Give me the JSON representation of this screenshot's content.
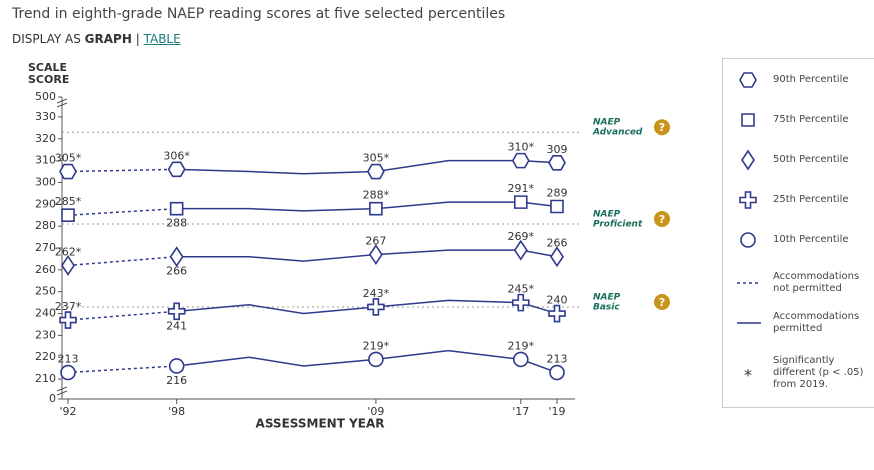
{
  "header": {
    "title": "Trend in eighth-grade NAEP reading scores at five selected percentiles",
    "display_as": "DISPLAY AS",
    "graph": "GRAPH",
    "separator": "|",
    "table": "TABLE"
  },
  "chart_data": {
    "type": "line",
    "y_axis_label": [
      "SCALE",
      "SCORE"
    ],
    "x_axis_label": "ASSESSMENT YEAR",
    "x": [
      1992,
      1998,
      2002,
      2005,
      2009,
      2013,
      2017,
      2019
    ],
    "xlim": [
      1992,
      2019
    ],
    "xticks": [
      {
        "value": 1992,
        "label": "'92"
      },
      {
        "value": 1998,
        "label": "'98"
      },
      {
        "value": 2009,
        "label": "'09"
      },
      {
        "value": 2017,
        "label": "'17"
      },
      {
        "value": 2019,
        "label": "'19"
      }
    ],
    "ylim": [
      205,
      335
    ],
    "yticks": [
      210,
      220,
      230,
      240,
      250,
      260,
      270,
      280,
      290,
      300,
      310,
      320,
      330
    ],
    "break_ticks": [
      500,
      0
    ],
    "color": "#2e3a8c",
    "series": [
      {
        "name": "90th Percentile",
        "marker": "hexagon",
        "values_not_permitted": [
          305,
          306,
          null,
          null,
          null,
          null,
          null,
          null
        ],
        "values": [
          null,
          306,
          305,
          304,
          305,
          310,
          310,
          309
        ],
        "value_labels": [
          "305*",
          "306*",
          null,
          null,
          "305*",
          null,
          "310*",
          "309"
        ]
      },
      {
        "name": "75th Percentile",
        "marker": "square",
        "values_not_permitted": [
          285,
          288,
          null,
          null,
          null,
          null,
          null,
          null
        ],
        "values": [
          null,
          288,
          288,
          287,
          288,
          291,
          291,
          289
        ],
        "value_labels": [
          "285*",
          "288",
          null,
          null,
          "288*",
          null,
          "291*",
          "289"
        ]
      },
      {
        "name": "50th Percentile",
        "marker": "diamond",
        "values_not_permitted": [
          262,
          266,
          null,
          null,
          null,
          null,
          null,
          null
        ],
        "values": [
          null,
          266,
          266,
          264,
          267,
          269,
          269,
          266
        ],
        "value_labels": [
          "262*",
          "266",
          null,
          null,
          "267",
          null,
          "269*",
          "266"
        ]
      },
      {
        "name": "25th Percentile",
        "marker": "cross",
        "values_not_permitted": [
          237,
          241,
          null,
          null,
          null,
          null,
          null,
          null
        ],
        "values": [
          null,
          241,
          244,
          240,
          243,
          246,
          245,
          240
        ],
        "value_labels": [
          "237*",
          "241",
          null,
          null,
          "243*",
          null,
          "245*",
          "240"
        ]
      },
      {
        "name": "10th Percentile",
        "marker": "circle",
        "values_not_permitted": [
          213,
          216,
          null,
          null,
          null,
          null,
          null,
          null
        ],
        "values": [
          null,
          216,
          220,
          216,
          219,
          223,
          219,
          213
        ],
        "value_labels": [
          "213",
          "216",
          null,
          null,
          "219*",
          null,
          "219*",
          "213"
        ]
      }
    ],
    "reference_lines": [
      {
        "name": [
          "NAEP",
          "Advanced"
        ],
        "value": 323
      },
      {
        "name": [
          "NAEP",
          "Proficient"
        ],
        "value": 281
      },
      {
        "name": [
          "NAEP",
          "Basic"
        ],
        "value": 243
      }
    ],
    "legend_lines": [
      "Accommodations not permitted",
      "Accommodations permitted"
    ],
    "significance": {
      "symbol": "*",
      "text": "Significantly different (p < .05) from 2019."
    }
  }
}
